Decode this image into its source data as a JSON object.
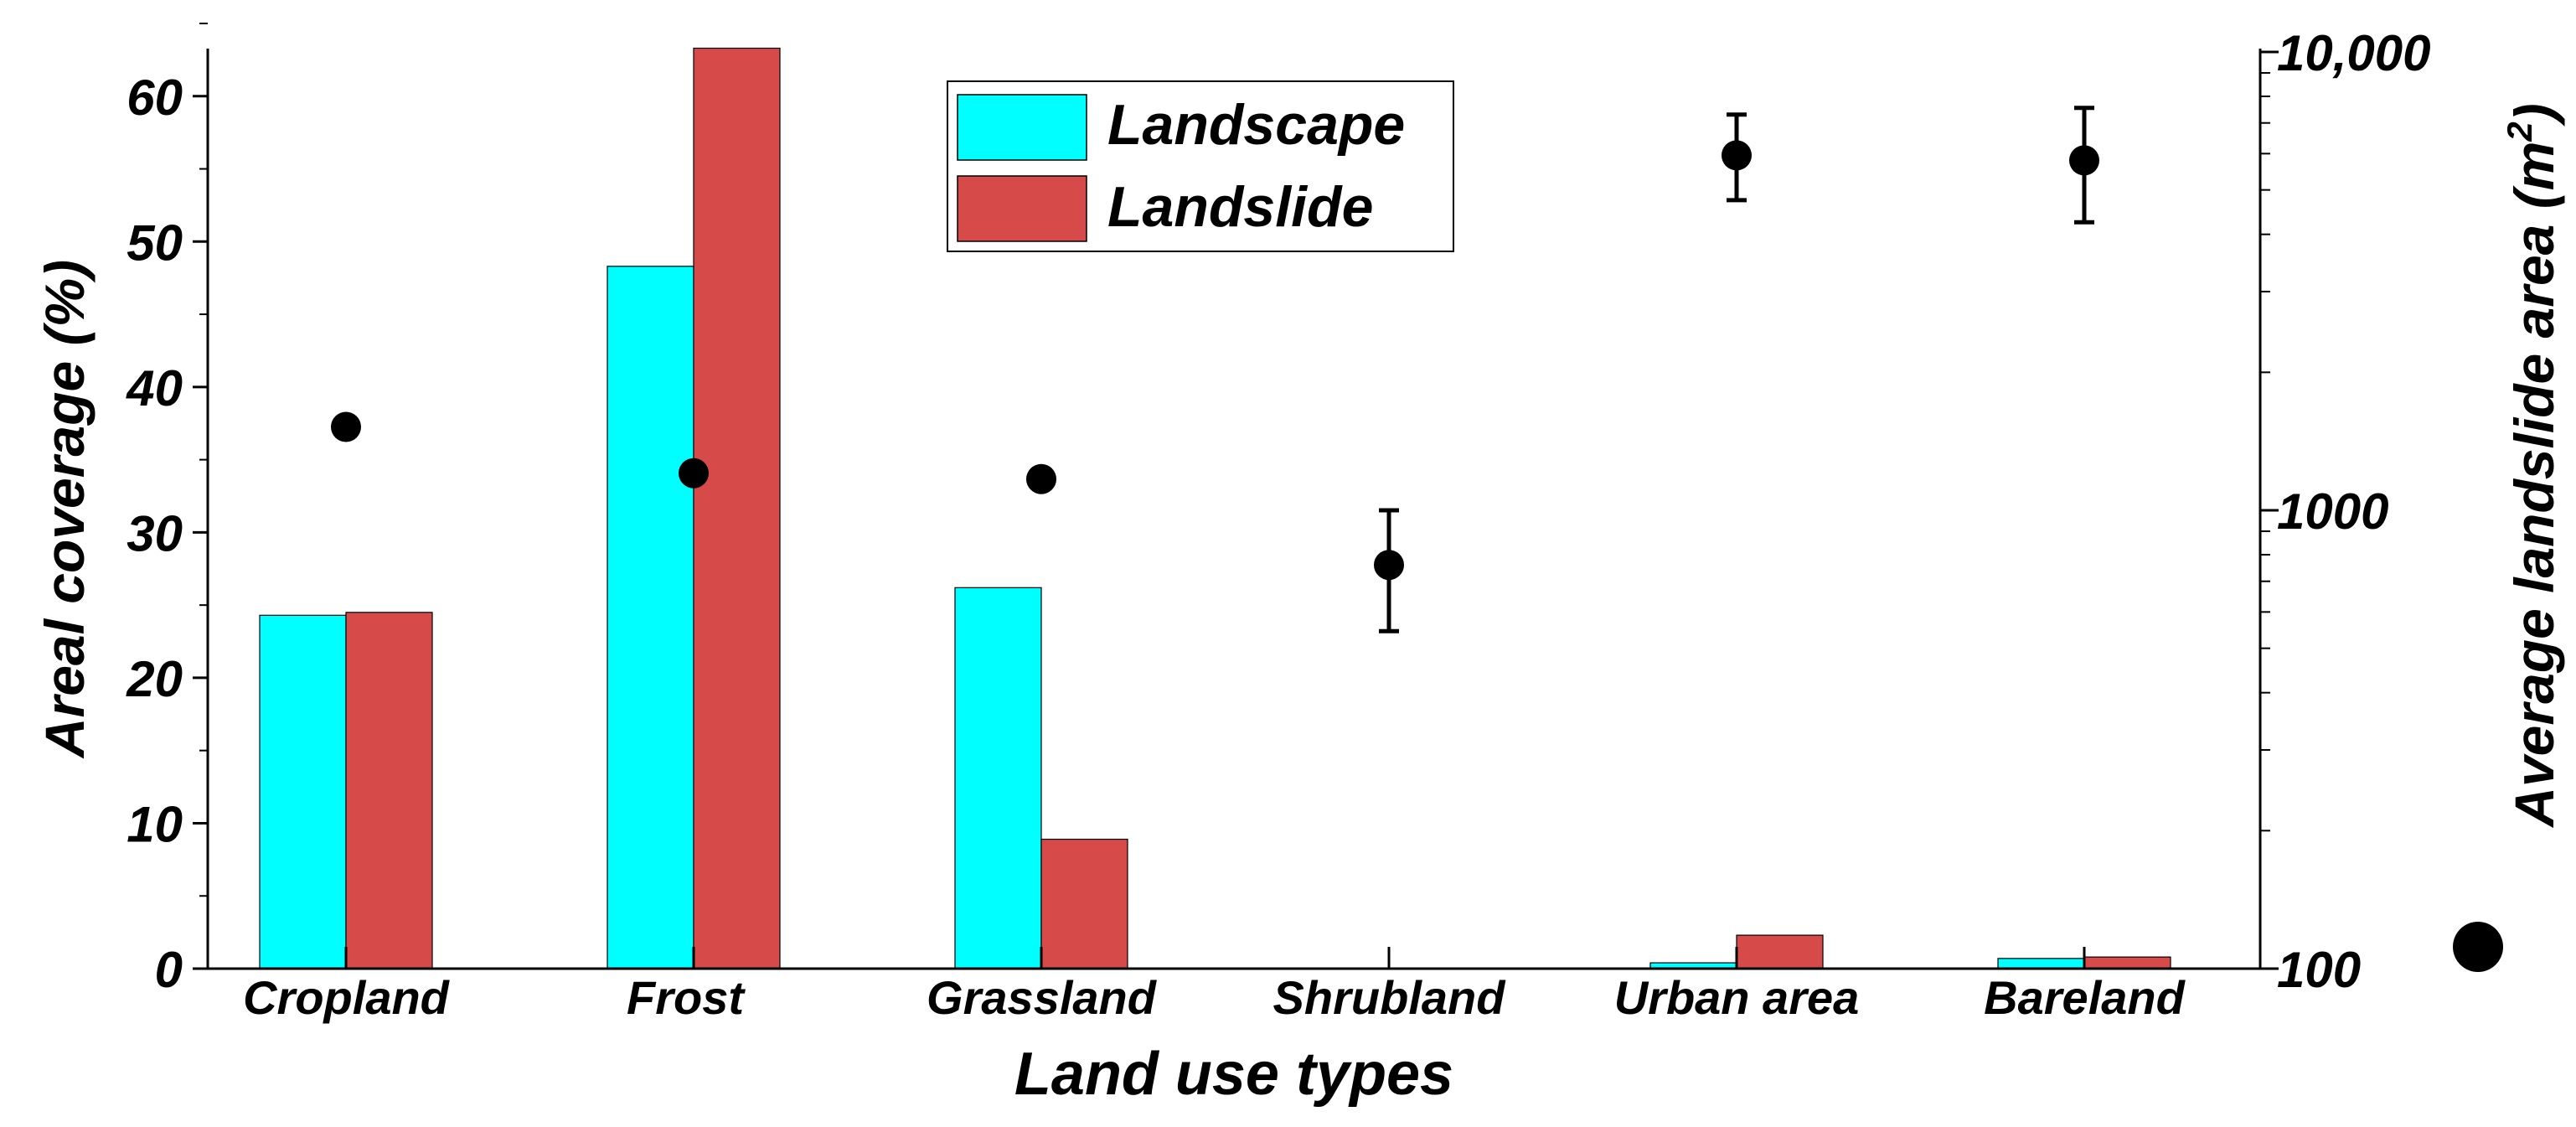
{
  "chart_data": {
    "type": "bar",
    "xlabel": "Land use types",
    "ylabel": "Areal coverage (%)",
    "y2label": "Average landslide area (m",
    "y2label_sup": "2",
    "y2label_close": ")",
    "categories": [
      "Cropland",
      "Frost",
      "Grassland",
      "Shrubland",
      "Urban area",
      "Bareland"
    ],
    "ylim": [
      0,
      65
    ],
    "yticks": [
      0,
      10,
      20,
      30,
      40,
      50,
      60
    ],
    "y2lim": [
      100,
      10000
    ],
    "y2scale": "log",
    "y2ticks": [
      {
        "value": 100,
        "label": "100"
      },
      {
        "value": 1000,
        "label": "1000"
      },
      {
        "value": 10000,
        "label": "10,000"
      }
    ],
    "series": [
      {
        "name": "Landscape",
        "color": "#00ffff",
        "values": [
          24.3,
          48.3,
          26.2,
          0.05,
          0.4,
          0.7
        ]
      },
      {
        "name": "Landslide",
        "color": "#d64a4a",
        "values": [
          24.5,
          63.3,
          8.9,
          0.0,
          2.3,
          0.8
        ]
      }
    ],
    "points": {
      "name": "Average landslide area",
      "marker": "filled-circle",
      "color": "#000000",
      "values": [
        1520,
        1205,
        1170,
        760,
        5950,
        5800
      ],
      "error_low": [
        null,
        null,
        null,
        545,
        4750,
        4250
      ],
      "error_high": [
        null,
        null,
        null,
        1000,
        7300,
        7550
      ]
    },
    "legend": {
      "position": "top-center",
      "items": [
        "Landscape",
        "Landslide"
      ]
    }
  }
}
